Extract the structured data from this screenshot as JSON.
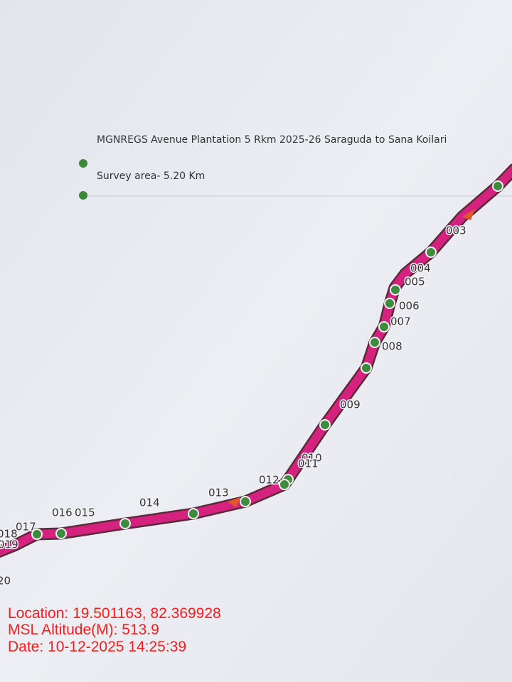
{
  "legend": {
    "title": "MGNREGS Avenue Plantation 5 Rkm 2025-26 Saraguda to Sana Koilari",
    "subtitle": "Survey area- 5.20 Km"
  },
  "waypoints": [
    "003",
    "004",
    "005",
    "006",
    "007",
    "008",
    "009",
    "010",
    "011",
    "012",
    "013",
    "014",
    "015",
    "016",
    "017",
    "018",
    "019",
    "20"
  ],
  "overlay": {
    "location": "Location: 19.501163, 82.369928",
    "altitude": "MSL Altitude(M): 513.9",
    "date": "Date: 10-12-2025 14:25:39"
  }
}
